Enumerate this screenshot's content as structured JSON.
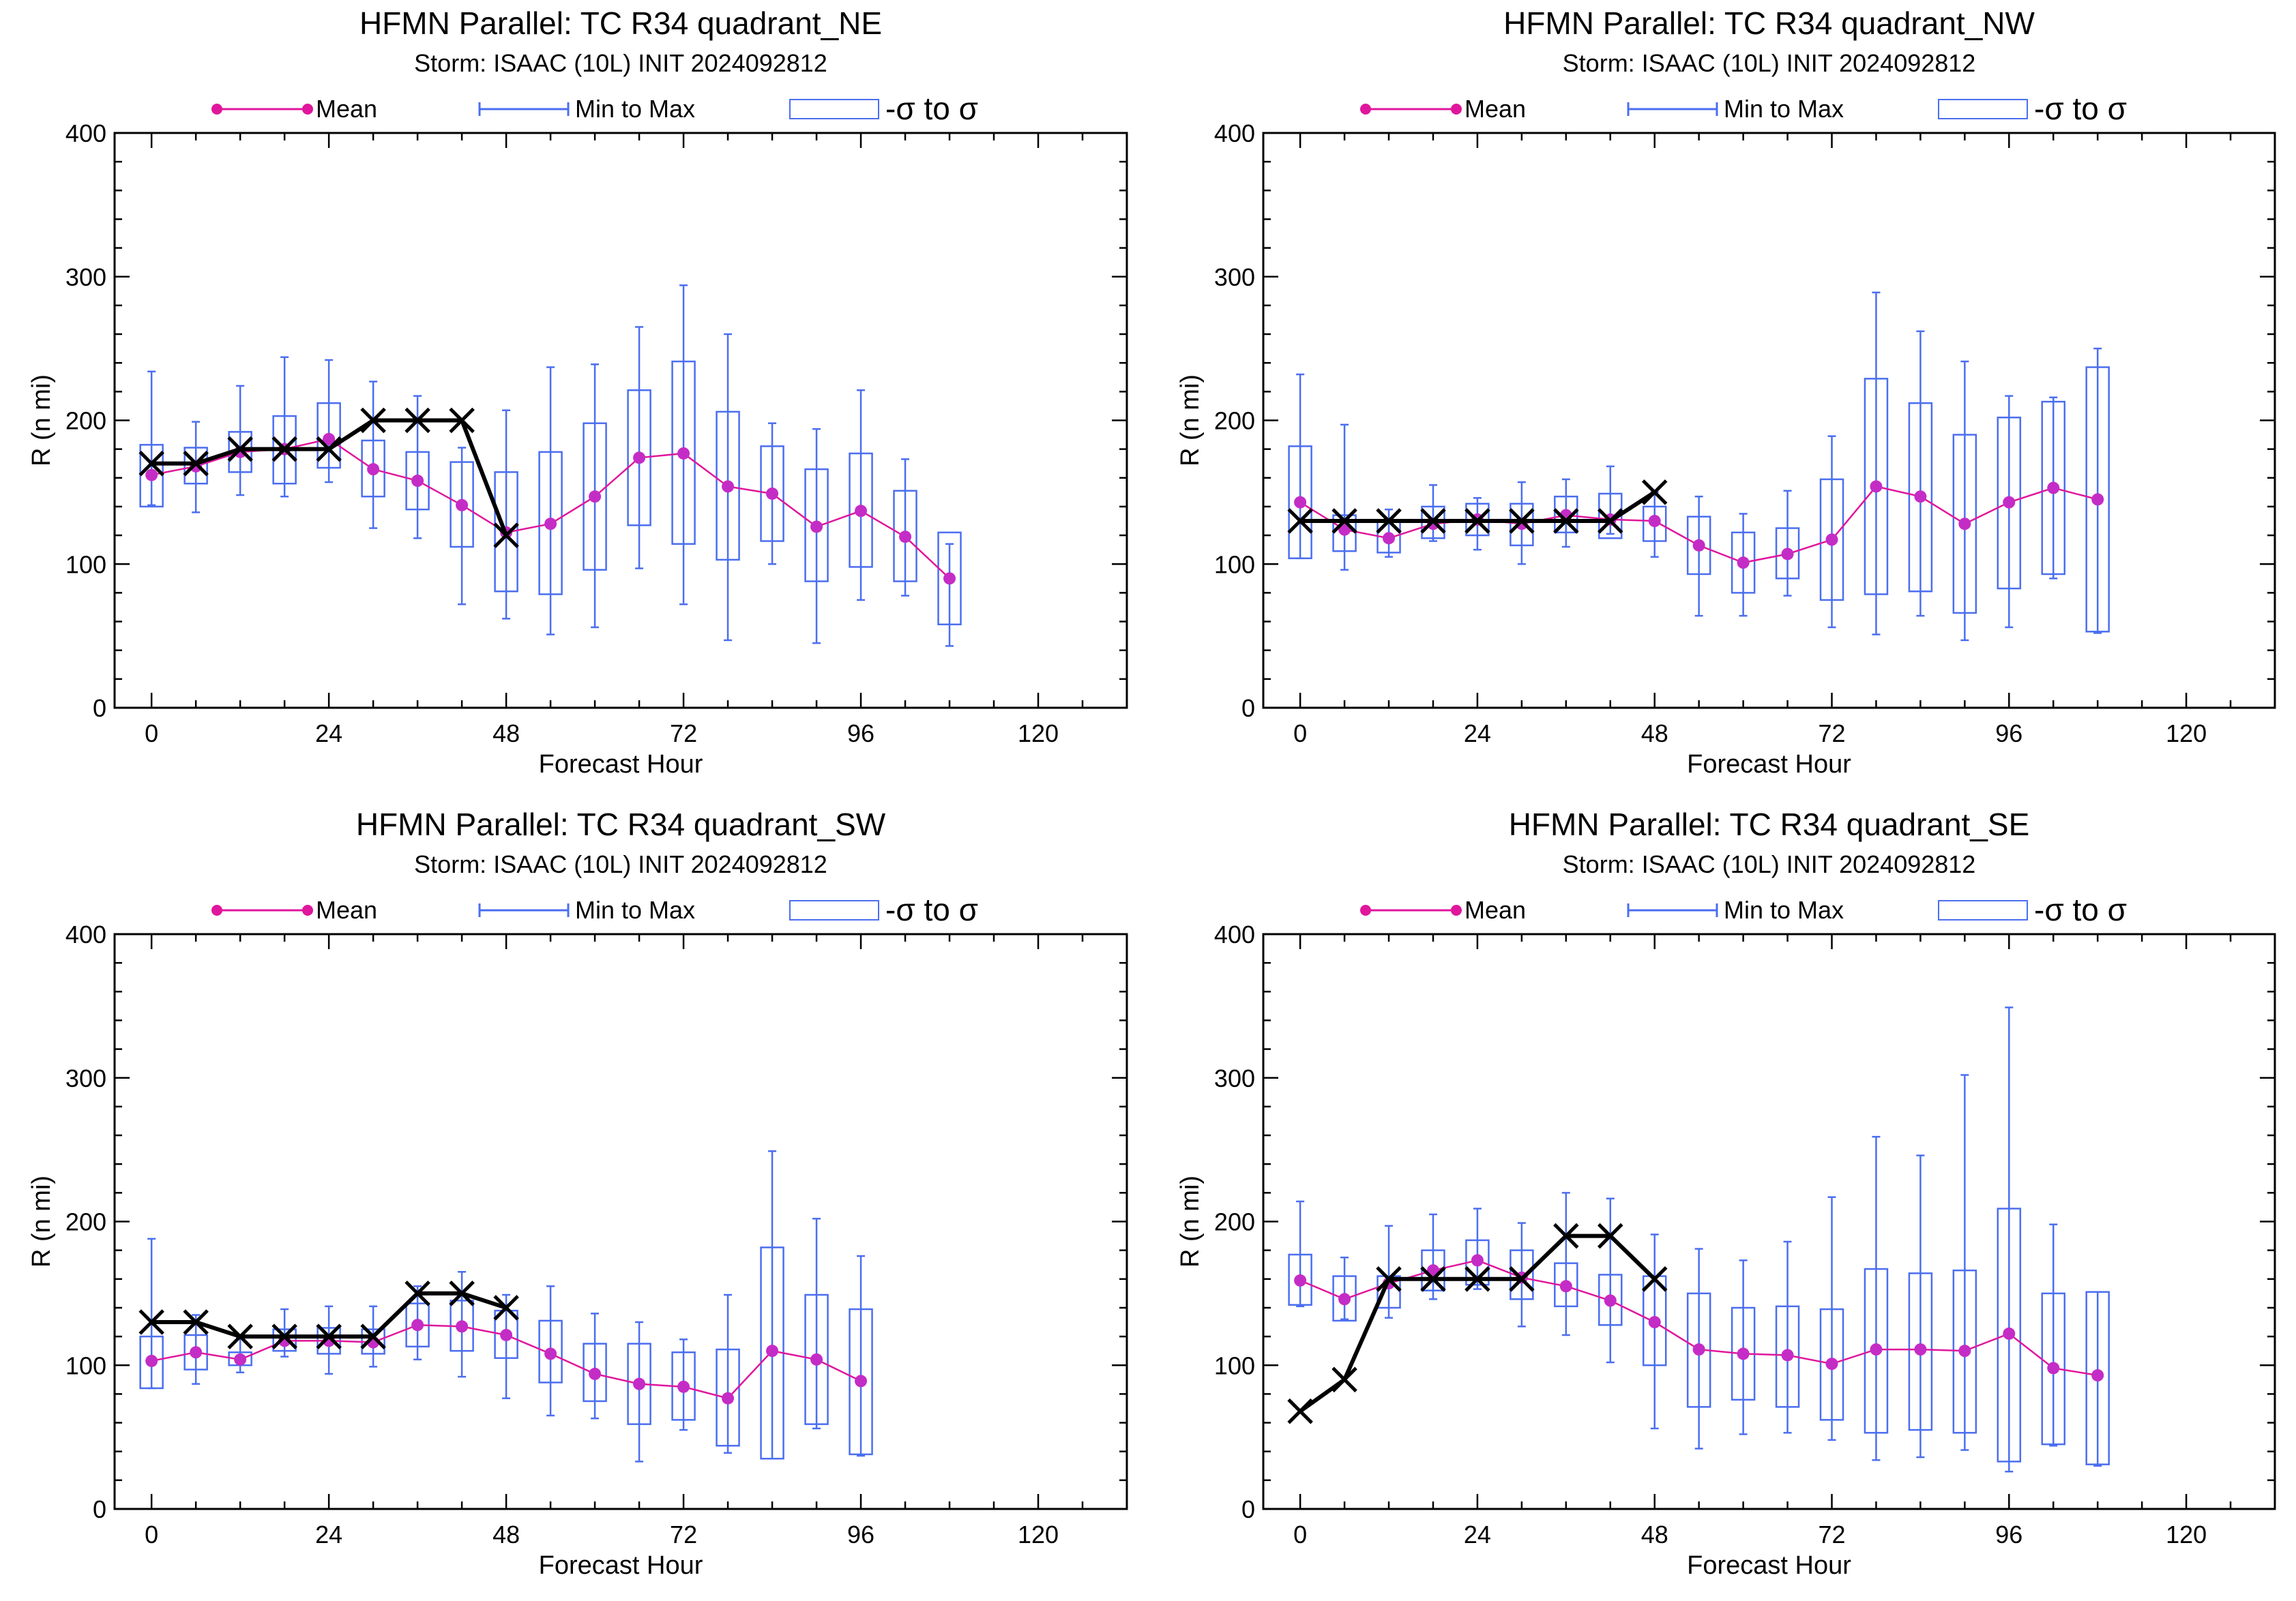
{
  "legend_labels": {
    "mean": "Mean",
    "minmax": "Min to Max",
    "sigma": "-σ to σ"
  },
  "colors": {
    "mean": "#e0169c",
    "mean_marker": "#c42cc6",
    "box": "#4b6ef0",
    "best_track": "#000000",
    "axis": "#000000"
  },
  "chart_data": [
    {
      "type": "box-line",
      "title": "HFMN Parallel: TC  R34 quadrant_NE",
      "subtitle": "Storm: ISAAC (10L) INIT 2024092812",
      "xlabel": "Forecast Hour",
      "ylabel": "R (n mi)",
      "xlim": [
        -5,
        132
      ],
      "ylim": [
        0,
        400
      ],
      "xticks": [
        0,
        24,
        48,
        72,
        96,
        120
      ],
      "yticks": [
        0,
        100,
        200,
        300,
        400
      ],
      "x": [
        0,
        6,
        12,
        18,
        24,
        30,
        36,
        42,
        48,
        54,
        60,
        66,
        72,
        78,
        84,
        90,
        96,
        102,
        108
      ],
      "mean": [
        162,
        168,
        178,
        180,
        187,
        166,
        158,
        141,
        122,
        128,
        147,
        174,
        177,
        154,
        149,
        126,
        137,
        119,
        90
      ],
      "min": [
        141,
        136,
        148,
        147,
        157,
        125,
        118,
        72,
        62,
        51,
        56,
        97,
        72,
        47,
        100,
        45,
        75,
        78,
        43
      ],
      "max": [
        234,
        199,
        224,
        244,
        242,
        227,
        217,
        181,
        207,
        237,
        239,
        265,
        294,
        260,
        198,
        194,
        221,
        173,
        114
      ],
      "sigma_lo": [
        140,
        156,
        164,
        156,
        167,
        147,
        138,
        112,
        81,
        79,
        96,
        127,
        114,
        103,
        116,
        88,
        98,
        88,
        58
      ],
      "sigma_hi": [
        183,
        181,
        192,
        203,
        212,
        186,
        178,
        171,
        164,
        178,
        198,
        221,
        241,
        206,
        182,
        166,
        177,
        151,
        122
      ],
      "best_track": {
        "x": [
          0,
          6,
          12,
          18,
          24,
          30,
          36,
          42,
          48
        ],
        "y": [
          170,
          170,
          180,
          180,
          180,
          200,
          200,
          200,
          120
        ]
      }
    },
    {
      "type": "box-line",
      "title": "HFMN Parallel: TC  R34 quadrant_NW",
      "subtitle": "Storm: ISAAC (10L) INIT 2024092812",
      "xlabel": "Forecast Hour",
      "ylabel": "R (n mi)",
      "xlim": [
        -5,
        132
      ],
      "ylim": [
        0,
        400
      ],
      "xticks": [
        0,
        24,
        48,
        72,
        96,
        120
      ],
      "yticks": [
        0,
        100,
        200,
        300,
        400
      ],
      "x": [
        0,
        6,
        12,
        18,
        24,
        30,
        36,
        42,
        48,
        54,
        60,
        66,
        72,
        78,
        84,
        90,
        96,
        102,
        108
      ],
      "mean": [
        143,
        124,
        118,
        128,
        131,
        128,
        134,
        131,
        130,
        113,
        101,
        107,
        117,
        154,
        147,
        128,
        143,
        153,
        145
      ],
      "min": [
        104,
        96,
        105,
        116,
        110,
        100,
        112,
        121,
        105,
        64,
        64,
        78,
        56,
        51,
        64,
        47,
        56,
        90,
        52
      ],
      "max": [
        232,
        197,
        138,
        155,
        146,
        157,
        159,
        168,
        150,
        147,
        135,
        151,
        189,
        289,
        262,
        241,
        217,
        216,
        250
      ],
      "sigma_lo": [
        104,
        109,
        108,
        118,
        120,
        113,
        122,
        118,
        116,
        93,
        80,
        90,
        75,
        79,
        81,
        66,
        83,
        93,
        53
      ],
      "sigma_hi": [
        182,
        134,
        130,
        140,
        142,
        142,
        147,
        149,
        140,
        133,
        122,
        125,
        159,
        229,
        212,
        190,
        202,
        213,
        237
      ],
      "best_track": {
        "x": [
          0,
          6,
          12,
          18,
          24,
          30,
          36,
          42,
          48
        ],
        "y": [
          130,
          130,
          130,
          130,
          130,
          130,
          130,
          130,
          150
        ]
      }
    },
    {
      "type": "box-line",
      "title": "HFMN Parallel: TC  R34 quadrant_SW",
      "subtitle": "Storm: ISAAC (10L) INIT 2024092812",
      "xlabel": "Forecast Hour",
      "ylabel": "R (n mi)",
      "xlim": [
        -5,
        132
      ],
      "ylim": [
        0,
        400
      ],
      "xticks": [
        0,
        24,
        48,
        72,
        96,
        120
      ],
      "yticks": [
        0,
        100,
        200,
        300,
        400
      ],
      "x": [
        0,
        6,
        12,
        18,
        24,
        30,
        36,
        42,
        48,
        54,
        60,
        66,
        72,
        78,
        84,
        90,
        96
      ],
      "mean": [
        103,
        109,
        104,
        117,
        117,
        116,
        128,
        127,
        121,
        108,
        94,
        87,
        85,
        77,
        110,
        104,
        89
      ],
      "min": [
        84,
        87,
        95,
        106,
        94,
        99,
        104,
        92,
        77,
        65,
        63,
        33,
        55,
        39,
        35,
        56,
        37
      ],
      "max": [
        188,
        135,
        119,
        139,
        141,
        141,
        155,
        165,
        149,
        155,
        136,
        130,
        118,
        149,
        249,
        202,
        176
      ],
      "sigma_lo": [
        84,
        97,
        100,
        110,
        108,
        108,
        113,
        110,
        105,
        88,
        75,
        59,
        62,
        44,
        35,
        59,
        38
      ],
      "sigma_hi": [
        120,
        121,
        109,
        125,
        126,
        125,
        143,
        145,
        138,
        131,
        115,
        115,
        109,
        111,
        182,
        149,
        139
      ],
      "best_track": {
        "x": [
          0,
          6,
          12,
          18,
          24,
          30,
          36,
          42,
          48
        ],
        "y": [
          130,
          130,
          120,
          120,
          120,
          120,
          150,
          150,
          140
        ]
      }
    },
    {
      "type": "box-line",
      "title": "HFMN Parallel: TC  R34 quadrant_SE",
      "subtitle": "Storm: ISAAC (10L) INIT 2024092812",
      "xlabel": "Forecast Hour",
      "ylabel": "R (n mi)",
      "xlim": [
        -5,
        132
      ],
      "ylim": [
        0,
        400
      ],
      "xticks": [
        0,
        24,
        48,
        72,
        96,
        120
      ],
      "yticks": [
        0,
        100,
        200,
        300,
        400
      ],
      "x": [
        0,
        6,
        12,
        18,
        24,
        30,
        36,
        42,
        48,
        54,
        60,
        66,
        72,
        78,
        84,
        90,
        96,
        102,
        108
      ],
      "mean": [
        159,
        146,
        157,
        166,
        173,
        161,
        155,
        145,
        130,
        111,
        108,
        107,
        101,
        111,
        111,
        110,
        122,
        98,
        93
      ],
      "min": [
        141,
        132,
        133,
        146,
        153,
        127,
        121,
        102,
        56,
        42,
        52,
        53,
        48,
        34,
        36,
        41,
        26,
        44,
        30
      ],
      "max": [
        214,
        175,
        197,
        205,
        209,
        199,
        220,
        216,
        191,
        181,
        173,
        186,
        217,
        259,
        246,
        302,
        349,
        198,
        151
      ],
      "sigma_lo": [
        142,
        131,
        140,
        152,
        156,
        146,
        141,
        128,
        100,
        71,
        76,
        71,
        62,
        53,
        55,
        53,
        33,
        45,
        31
      ],
      "sigma_hi": [
        177,
        162,
        162,
        180,
        187,
        180,
        171,
        163,
        162,
        150,
        140,
        141,
        139,
        167,
        164,
        166,
        209,
        150,
        151
      ],
      "best_track": {
        "x": [
          0,
          6,
          12,
          18,
          24,
          30,
          36,
          42,
          48
        ],
        "y": [
          68,
          90,
          160,
          160,
          160,
          160,
          190,
          190,
          160
        ]
      }
    }
  ]
}
